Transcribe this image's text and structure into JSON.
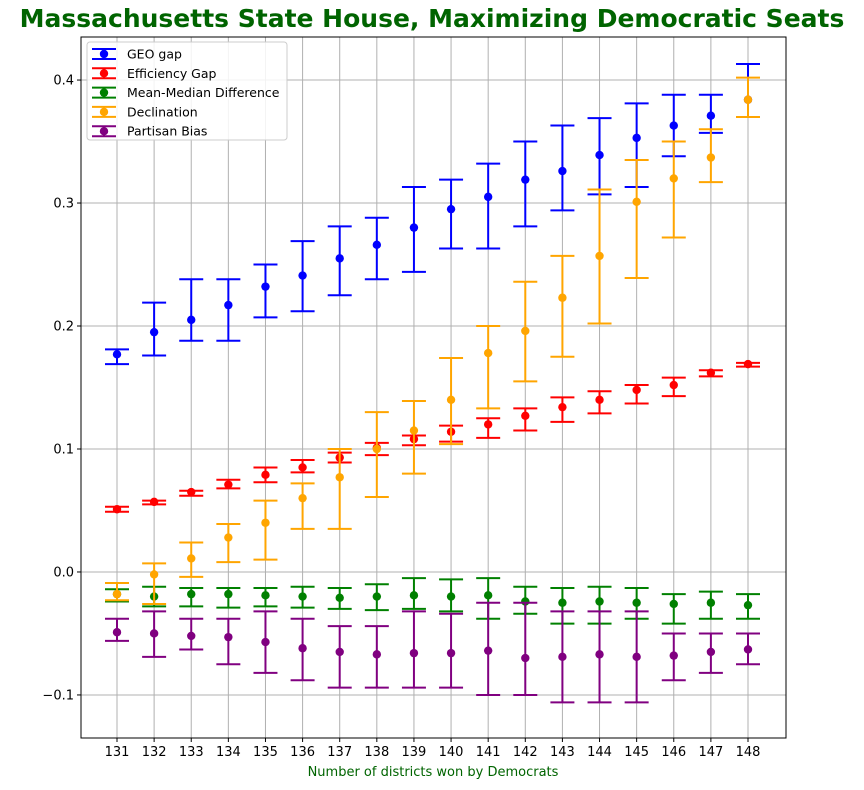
{
  "chart_data": {
    "type": "errorbar",
    "title": "Massachusetts State House, Maximizing Democratic Seats",
    "xlabel": "Number of districts won by Democrats",
    "ylabel": "",
    "x": [
      131,
      132,
      133,
      134,
      135,
      136,
      137,
      138,
      139,
      140,
      141,
      142,
      143,
      144,
      145,
      146,
      147,
      148
    ],
    "ylim": [
      -0.135,
      0.435
    ],
    "yticks": [
      -0.1,
      0.0,
      0.1,
      0.2,
      0.3,
      0.4
    ],
    "ytick_labels": [
      "−0.1",
      "0.0",
      "0.1",
      "0.2",
      "0.3",
      "0.4"
    ],
    "grid": true,
    "legend_position": "top-left",
    "colors": {
      "title": "#006400",
      "xlabel": "#006400",
      "grid": "#b0b0b0"
    },
    "series": [
      {
        "name": "GEO gap",
        "color": "#0000ff",
        "values": [
          0.177,
          0.195,
          0.205,
          0.217,
          0.232,
          0.241,
          0.255,
          0.266,
          0.28,
          0.295,
          0.305,
          0.319,
          0.326,
          0.339,
          0.353,
          0.363,
          0.371,
          0.384
        ],
        "low": [
          0.169,
          0.176,
          0.188,
          0.188,
          0.207,
          0.212,
          0.225,
          0.238,
          0.244,
          0.263,
          0.263,
          0.281,
          0.294,
          0.307,
          0.313,
          0.338,
          0.357,
          0.37
        ],
        "high": [
          0.181,
          0.219,
          0.238,
          0.238,
          0.25,
          0.269,
          0.281,
          0.288,
          0.313,
          0.319,
          0.332,
          0.35,
          0.363,
          0.369,
          0.381,
          0.388,
          0.388,
          0.413
        ]
      },
      {
        "name": "Efficiency Gap",
        "color": "#ff0000",
        "values": [
          0.051,
          0.057,
          0.065,
          0.071,
          0.079,
          0.085,
          0.093,
          0.101,
          0.108,
          0.114,
          0.12,
          0.127,
          0.134,
          0.14,
          0.148,
          0.152,
          0.162,
          0.169
        ],
        "low": [
          0.049,
          0.055,
          0.062,
          0.068,
          0.073,
          0.081,
          0.089,
          0.095,
          0.103,
          0.106,
          0.109,
          0.115,
          0.122,
          0.129,
          0.137,
          0.143,
          0.159,
          0.167
        ],
        "high": [
          0.053,
          0.058,
          0.066,
          0.075,
          0.085,
          0.091,
          0.097,
          0.105,
          0.111,
          0.119,
          0.125,
          0.133,
          0.142,
          0.147,
          0.152,
          0.158,
          0.164,
          0.17
        ]
      },
      {
        "name": "Mean-Median Difference",
        "color": "#008000",
        "values": [
          -0.018,
          -0.02,
          -0.018,
          -0.018,
          -0.019,
          -0.02,
          -0.021,
          -0.02,
          -0.019,
          -0.02,
          -0.019,
          -0.024,
          -0.025,
          -0.024,
          -0.025,
          -0.026,
          -0.025,
          -0.027
        ],
        "low": [
          -0.024,
          -0.028,
          -0.028,
          -0.029,
          -0.028,
          -0.029,
          -0.03,
          -0.031,
          -0.03,
          -0.032,
          -0.038,
          -0.034,
          -0.042,
          -0.042,
          -0.038,
          -0.042,
          -0.038,
          -0.038
        ],
        "high": [
          -0.014,
          -0.012,
          -0.013,
          -0.013,
          -0.013,
          -0.012,
          -0.013,
          -0.01,
          -0.005,
          -0.006,
          -0.005,
          -0.012,
          -0.013,
          -0.012,
          -0.013,
          -0.018,
          -0.016,
          -0.018
        ]
      },
      {
        "name": "Declination",
        "color": "#ffa500",
        "values": [
          -0.018,
          -0.002,
          0.011,
          0.028,
          0.04,
          0.06,
          0.077,
          0.1,
          0.115,
          0.14,
          0.178,
          0.196,
          0.223,
          0.257,
          0.301,
          0.32,
          0.337,
          0.384
        ],
        "low": [
          -0.023,
          -0.026,
          -0.004,
          0.008,
          0.01,
          0.035,
          0.035,
          0.061,
          0.08,
          0.104,
          0.133,
          0.155,
          0.175,
          0.202,
          0.239,
          0.272,
          0.317,
          0.37
        ],
        "high": [
          -0.009,
          0.007,
          0.024,
          0.039,
          0.058,
          0.072,
          0.1,
          0.13,
          0.139,
          0.174,
          0.2,
          0.236,
          0.257,
          0.311,
          0.335,
          0.35,
          0.36,
          0.402
        ]
      },
      {
        "name": "Partisan Bias",
        "color": "#800080",
        "values": [
          -0.049,
          -0.05,
          -0.052,
          -0.053,
          -0.057,
          -0.062,
          -0.065,
          -0.067,
          -0.066,
          -0.066,
          -0.064,
          -0.07,
          -0.069,
          -0.067,
          -0.069,
          -0.068,
          -0.065,
          -0.063
        ],
        "low": [
          -0.056,
          -0.069,
          -0.063,
          -0.075,
          -0.082,
          -0.088,
          -0.094,
          -0.094,
          -0.094,
          -0.094,
          -0.1,
          -0.1,
          -0.106,
          -0.106,
          -0.106,
          -0.088,
          -0.082,
          -0.075
        ],
        "high": [
          -0.038,
          -0.032,
          -0.038,
          -0.038,
          -0.032,
          -0.038,
          -0.044,
          -0.044,
          -0.032,
          -0.034,
          -0.025,
          -0.025,
          -0.032,
          -0.032,
          -0.032,
          -0.05,
          -0.05,
          -0.05
        ]
      }
    ]
  }
}
